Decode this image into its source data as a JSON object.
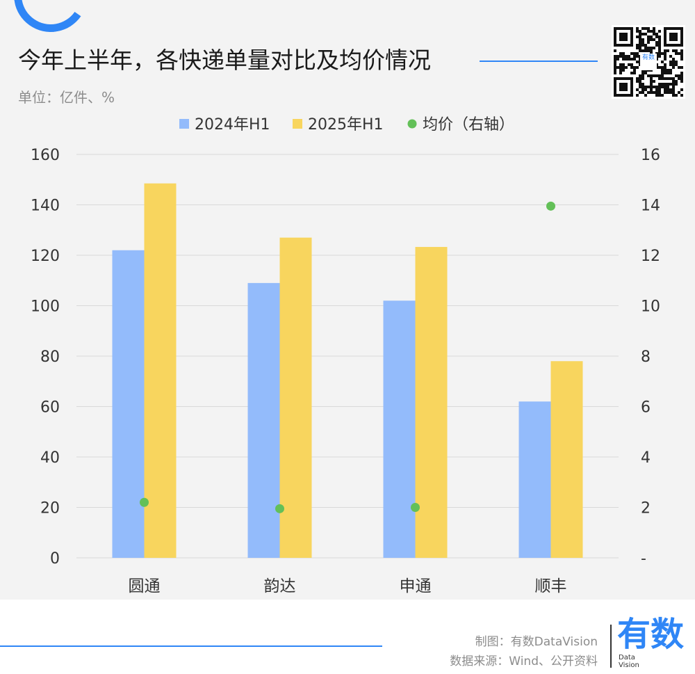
{
  "header": {
    "title": "今年上半年，各快递单量对比及均价情况",
    "unit": "单位：亿件、%"
  },
  "logo": {
    "qr_center": "有数",
    "brand": "有数",
    "brand_sub_1": "Data",
    "brand_sub_2": "Vision"
  },
  "footer": {
    "credit_line_1": "制图：有数DataVision",
    "credit_line_2": "数据来源：Wind、公开资料"
  },
  "colors": {
    "accent": "#2f86f6",
    "series_2024": "#93bbfb",
    "series_2025": "#f8d55e",
    "series_price": "#63c058"
  },
  "chart_data": {
    "type": "bar",
    "categories": [
      "圆通",
      "韵达",
      "申通",
      "顺丰"
    ],
    "series": [
      {
        "name": "2024年H1",
        "type": "bar",
        "axis": "left",
        "values": [
          122,
          109,
          102,
          62
        ]
      },
      {
        "name": "2025年H1",
        "type": "bar",
        "axis": "left",
        "values": [
          148.5,
          127,
          123.3,
          78
        ]
      },
      {
        "name": "均价（右轴）",
        "type": "scatter",
        "axis": "right",
        "values": [
          2.2,
          1.95,
          2.0,
          13.95
        ]
      }
    ],
    "ylim": [
      0,
      160
    ],
    "yticks": [
      "0",
      "20",
      "40",
      "60",
      "80",
      "100",
      "120",
      "140",
      "160"
    ],
    "y2lim": [
      0,
      16
    ],
    "y2ticks": [
      "-",
      "2",
      "4",
      "6",
      "8",
      "10",
      "12",
      "14",
      "16"
    ],
    "grid": true,
    "legend": "top"
  }
}
